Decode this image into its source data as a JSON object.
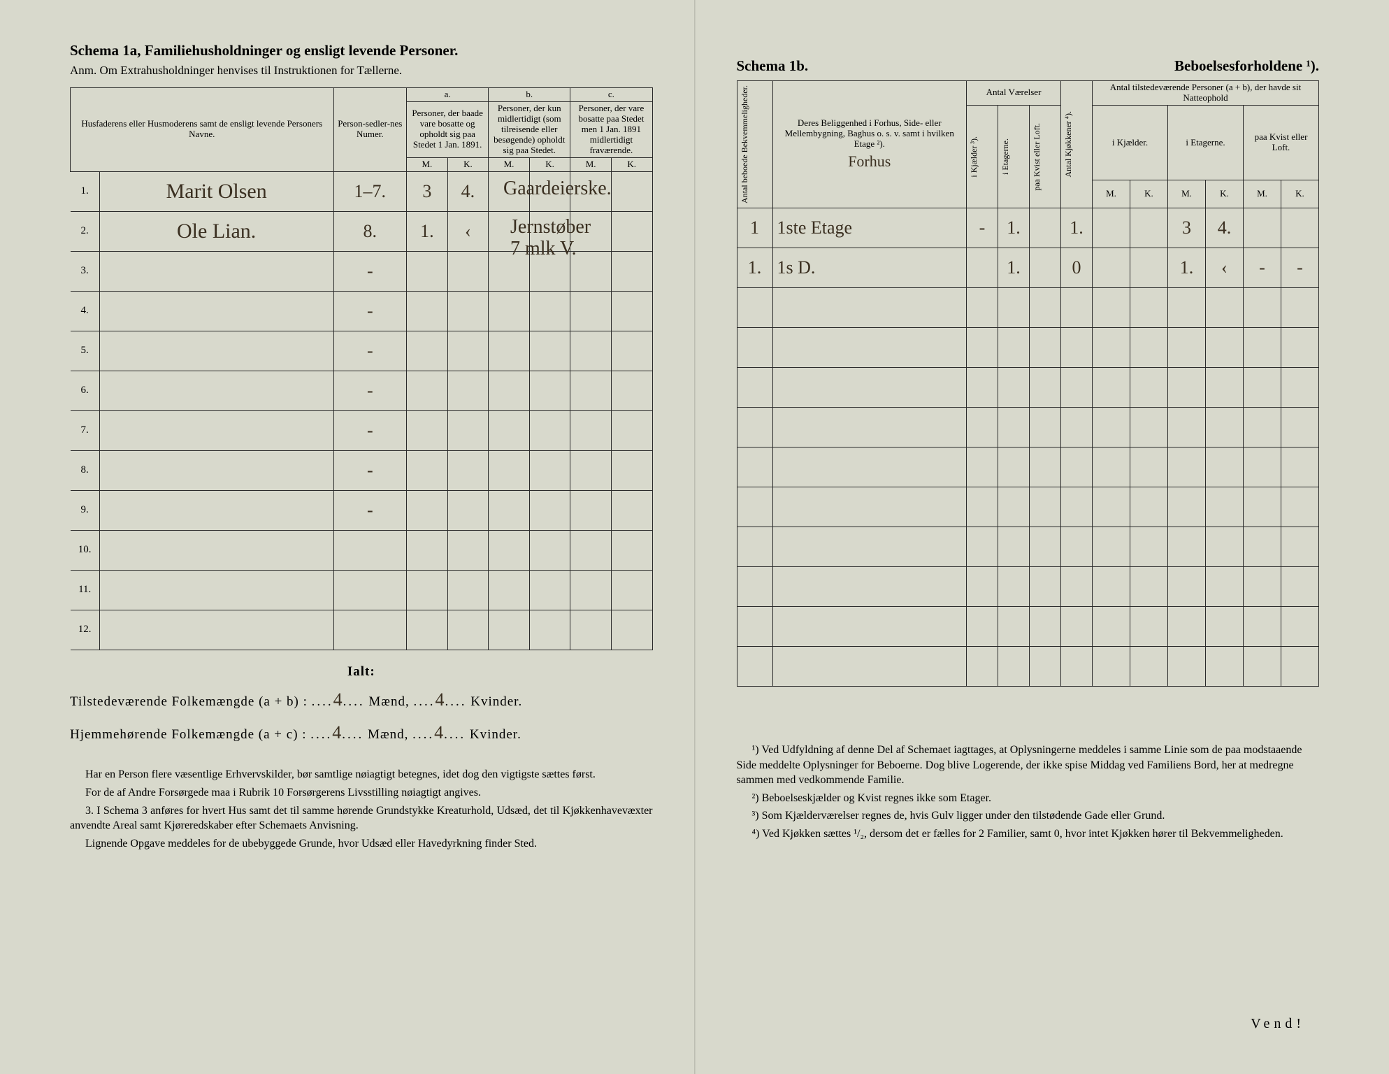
{
  "left": {
    "title": "Schema 1a,  Familiehusholdninger og ensligt levende Personer.",
    "subtitle": "Anm. Om Extrahusholdninger henvises til Instruktionen for Tællerne.",
    "headers": {
      "name": "Husfaderens eller Husmoderens samt de ensligt levende Personers Navne.",
      "numer": "Person-sedler-nes Numer.",
      "a_top": "a.",
      "a": "Personer, der baade vare bosatte og opholdt sig paa Stedet 1 Jan. 1891.",
      "b_top": "b.",
      "b": "Personer, der kun midlertidigt (som tilreisende eller besøgende) opholdt sig paa Stedet.",
      "c_top": "c.",
      "c": "Personer, der vare bosatte paa Stedet men 1 Jan. 1891 midlertidigt fraværende.",
      "m": "M.",
      "k": "K."
    },
    "rows": [
      {
        "n": "1.",
        "name": "Marit Olsen",
        "numer": "1–7.",
        "am": "3",
        "ak": "4.",
        "bm": "",
        "bk": "",
        "cm": "",
        "ck": ""
      },
      {
        "n": "2.",
        "name": "Ole Lian.",
        "numer": "8.",
        "am": "1.",
        "ak": "‹",
        "bm": "",
        "bk": "",
        "cm": "",
        "ck": ""
      },
      {
        "n": "3.",
        "name": "",
        "numer": "-",
        "am": "",
        "ak": "",
        "bm": "",
        "bk": "",
        "cm": "",
        "ck": ""
      },
      {
        "n": "4.",
        "name": "",
        "numer": "-",
        "am": "",
        "ak": "",
        "bm": "",
        "bk": "",
        "cm": "",
        "ck": ""
      },
      {
        "n": "5.",
        "name": "",
        "numer": "-",
        "am": "",
        "ak": "",
        "bm": "",
        "bk": "",
        "cm": "",
        "ck": ""
      },
      {
        "n": "6.",
        "name": "",
        "numer": "-",
        "am": "",
        "ak": "",
        "bm": "",
        "bk": "",
        "cm": "",
        "ck": ""
      },
      {
        "n": "7.",
        "name": "",
        "numer": "-",
        "am": "",
        "ak": "",
        "bm": "",
        "bk": "",
        "cm": "",
        "ck": ""
      },
      {
        "n": "8.",
        "name": "",
        "numer": "-",
        "am": "",
        "ak": "",
        "bm": "",
        "bk": "",
        "cm": "",
        "ck": ""
      },
      {
        "n": "9.",
        "name": "",
        "numer": "-",
        "am": "",
        "ak": "",
        "bm": "",
        "bk": "",
        "cm": "",
        "ck": ""
      },
      {
        "n": "10.",
        "name": "",
        "numer": "",
        "am": "",
        "ak": "",
        "bm": "",
        "bk": "",
        "cm": "",
        "ck": ""
      },
      {
        "n": "11.",
        "name": "",
        "numer": "",
        "am": "",
        "ak": "",
        "bm": "",
        "bk": "",
        "cm": "",
        "ck": ""
      },
      {
        "n": "12.",
        "name": "",
        "numer": "",
        "am": "",
        "ak": "",
        "bm": "",
        "bk": "",
        "cm": "",
        "ck": ""
      }
    ],
    "ialt": "Ialt:",
    "total1_label": "Tilstedeværende Folkemængde (a + b) :",
    "total1_m": "4",
    "total1_mu": "Mænd,",
    "total1_k": "4",
    "total1_ku": "Kvinder.",
    "total2_label": "Hjemmehørende Folkemængde (a + c) :",
    "total2_m": "4",
    "total2_k": "4",
    "para1": "Har en Person flere væsentlige Erhvervskilder, bør samtlige nøiagtigt betegnes, idet dog den vigtigste sættes først.",
    "para2": "For de af Andre Forsørgede maa i Rubrik 10 Forsørgerens Livsstilling nøiagtigt angives.",
    "para3_num": "3.",
    "para3": "I Schema 3 anføres for hvert Hus samt det til samme hørende Grundstykke Kreaturhold, Udsæd, det til Kjøkkenhavevæxter anvendte Areal samt Kjøreredskaber efter Schemaets Anvisning.",
    "para4": "Lignende Opgave meddeles for de ubebyggede Grunde, hvor Udsæd eller Havedyrkning finder Sted.",
    "annot1": "Gaardeierske.",
    "annot2": "Jernstøber\n7 mlk V."
  },
  "right": {
    "title_l": "Schema 1b.",
    "title_r": "Beboelsesforholdene ¹).",
    "headers": {
      "antal_bek": "Antal beboede Bekvemmeligheder.",
      "belig": "Deres Beliggenhed i Forhus, Side- eller Mellembygning, Baghus o. s. v. samt i hvilken Etage ²).",
      "vaer": "Antal Værelser",
      "kjael": "i Kjælder ³).",
      "etag": "i Etagerne.",
      "kvist": "paa Kvist eller Loft.",
      "kjok": "Antal Kjøkkener ⁴).",
      "tilst": "Antal tilstedeværende Personer (a + b), der havde sit Natteophold",
      "ikjael": "i Kjælder.",
      "ietag": "i Etagerne.",
      "paakvist": "paa Kvist eller Loft.",
      "m": "M.",
      "k": "K."
    },
    "heading_hand": "Forhus",
    "rows": [
      {
        "ab": "1",
        "bel": "1ste Etage",
        "kj": "-",
        "et": "1.",
        "kv": "",
        "kk": "1.",
        "nkjm": "",
        "nkjk": "",
        "netm": "3",
        "netk": "4.",
        "nkvm": "",
        "nkvk": ""
      },
      {
        "ab": "1.",
        "bel": "1s  D.",
        "kj": "",
        "et": "1.",
        "kv": "",
        "kk": "0",
        "nkjm": "",
        "nkjk": "",
        "netm": "1.",
        "netk": "‹",
        "nkvm": "-",
        "nkvk": "-"
      },
      {
        "ab": "",
        "bel": "",
        "kj": "",
        "et": "",
        "kv": "",
        "kk": "",
        "nkjm": "",
        "nkjk": "",
        "netm": "",
        "netk": "",
        "nkvm": "",
        "nkvk": ""
      },
      {
        "ab": "",
        "bel": "",
        "kj": "",
        "et": "",
        "kv": "",
        "kk": "",
        "nkjm": "",
        "nkjk": "",
        "netm": "",
        "netk": "",
        "nkvm": "",
        "nkvk": ""
      },
      {
        "ab": "",
        "bel": "",
        "kj": "",
        "et": "",
        "kv": "",
        "kk": "",
        "nkjm": "",
        "nkjk": "",
        "netm": "",
        "netk": "",
        "nkvm": "",
        "nkvk": ""
      },
      {
        "ab": "",
        "bel": "",
        "kj": "",
        "et": "",
        "kv": "",
        "kk": "",
        "nkjm": "",
        "nkjk": "",
        "netm": "",
        "netk": "",
        "nkvm": "",
        "nkvk": ""
      },
      {
        "ab": "",
        "bel": "",
        "kj": "",
        "et": "",
        "kv": "",
        "kk": "",
        "nkjm": "",
        "nkjk": "",
        "netm": "",
        "netk": "",
        "nkvm": "",
        "nkvk": ""
      },
      {
        "ab": "",
        "bel": "",
        "kj": "",
        "et": "",
        "kv": "",
        "kk": "",
        "nkjm": "",
        "nkjk": "",
        "netm": "",
        "netk": "",
        "nkvm": "",
        "nkvk": ""
      },
      {
        "ab": "",
        "bel": "",
        "kj": "",
        "et": "",
        "kv": "",
        "kk": "",
        "nkjm": "",
        "nkjk": "",
        "netm": "",
        "netk": "",
        "nkvm": "",
        "nkvk": ""
      },
      {
        "ab": "",
        "bel": "",
        "kj": "",
        "et": "",
        "kv": "",
        "kk": "",
        "nkjm": "",
        "nkjk": "",
        "netm": "",
        "netk": "",
        "nkvm": "",
        "nkvk": ""
      },
      {
        "ab": "",
        "bel": "",
        "kj": "",
        "et": "",
        "kv": "",
        "kk": "",
        "nkjm": "",
        "nkjk": "",
        "netm": "",
        "netk": "",
        "nkvm": "",
        "nkvk": ""
      },
      {
        "ab": "",
        "bel": "",
        "kj": "",
        "et": "",
        "kv": "",
        "kk": "",
        "nkjm": "",
        "nkjk": "",
        "netm": "",
        "netk": "",
        "nkvm": "",
        "nkvk": ""
      }
    ],
    "fn1": "¹) Ved Udfyldning af denne Del af Schemaet iagttages, at Oplysningerne meddeles i samme Linie som de paa modstaaende Side meddelte Oplysninger for Beboerne. Dog blive Logerende, der ikke spise Middag ved Familiens Bord, her at medregne sammen med vedkommende Familie.",
    "fn2": "²) Beboelseskjælder og Kvist regnes ikke som Etager.",
    "fn3": "³) Som Kjælderværelser regnes de, hvis Gulv ligger under den tilstødende Gade eller Grund.",
    "fn4": "⁴) Ved Kjøkken sættes ¹/₂, dersom det er fælles for 2 Familier, samt 0, hvor intet Kjøkken hører til Bekvemmeligheden.",
    "vend": "Vend!"
  },
  "colors": {
    "paper": "#d8d9cc",
    "ink": "#2a2a2a",
    "handwriting": "#3a2f20"
  }
}
